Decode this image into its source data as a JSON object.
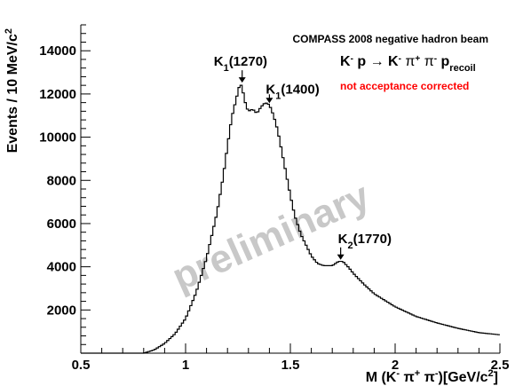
{
  "chart_data": {
    "type": "line",
    "subtype": "histogram-step",
    "title": "COMPASS 2008 negative hadron beam",
    "reaction": {
      "initial": "K",
      "initial_charge": "-",
      "target": " p",
      "arrow": "→",
      "final_1": "K",
      "final_1_charge": "-",
      "final_2": "π",
      "final_2_charge": "+",
      "final_3": "π",
      "final_3_charge": "-",
      "recoil": "p",
      "recoil_sub": "recoil"
    },
    "note": "not acceptance corrected",
    "note_color": "#ff0000",
    "watermark": "preliminary",
    "ylabel": {
      "text": "Events / 10 MeV/c",
      "superscript": "2"
    },
    "xlabel": {
      "prefix": "M (K",
      "k_charge": "-",
      "pi1": " π",
      "pi1_charge": "+",
      "pi2": " π",
      "pi2_charge": "-",
      "suffix": ")[GeV/c",
      "unit_sup": "2",
      "close": "]"
    },
    "xlim": [
      0.5,
      2.5
    ],
    "ylim": [
      0,
      15200
    ],
    "x_ticks": [
      {
        "value": 0.5,
        "label": "0.5"
      },
      {
        "value": 1.0,
        "label": "1"
      },
      {
        "value": 1.5,
        "label": "1.5"
      },
      {
        "value": 2.0,
        "label": "2"
      },
      {
        "value": 2.5,
        "label": "2.5"
      }
    ],
    "y_ticks": [
      {
        "value": 2000,
        "label": "2000"
      },
      {
        "value": 4000,
        "label": "4000"
      },
      {
        "value": 6000,
        "label": "6000"
      },
      {
        "value": 8000,
        "label": "8000"
      },
      {
        "value": 10000,
        "label": "10000"
      },
      {
        "value": 12000,
        "label": "12000"
      },
      {
        "value": 14000,
        "label": "14000"
      }
    ],
    "bin_width": 0.01,
    "series": [
      {
        "color": "#000000",
        "x": [
          0.5,
          0.8,
          0.85,
          0.9,
          0.95,
          1.0,
          1.05,
          1.1,
          1.15,
          1.18,
          1.2,
          1.22,
          1.24,
          1.25,
          1.26,
          1.27,
          1.28,
          1.29,
          1.3,
          1.32,
          1.34,
          1.36,
          1.38,
          1.4,
          1.42,
          1.44,
          1.46,
          1.48,
          1.5,
          1.52,
          1.55,
          1.58,
          1.6,
          1.63,
          1.66,
          1.7,
          1.73,
          1.75,
          1.78,
          1.8,
          1.85,
          1.9,
          2.0,
          2.1,
          2.2,
          2.3,
          2.4,
          2.5
        ],
        "y": [
          0,
          0,
          150,
          450,
          900,
          1600,
          2800,
          4400,
          6500,
          8200,
          9600,
          10900,
          11700,
          12100,
          12500,
          12300,
          11800,
          11400,
          11200,
          11300,
          11100,
          11400,
          11600,
          11500,
          11000,
          10300,
          9300,
          8300,
          7300,
          6400,
          5500,
          4900,
          4500,
          4150,
          4050,
          4050,
          4250,
          4250,
          3950,
          3700,
          3200,
          2750,
          2150,
          1700,
          1400,
          1150,
          950,
          850
        ]
      }
    ],
    "annotations": [
      {
        "main": "K",
        "sub": "1",
        "rest": "(1270)",
        "x": 1.27,
        "y": 12400
      },
      {
        "main": "K",
        "sub": "1",
        "rest": "(1400)",
        "x": 1.4,
        "y": 11450
      },
      {
        "main": "K",
        "sub": "2",
        "rest": "(1770)",
        "x": 1.74,
        "y": 4200
      }
    ],
    "grid": false,
    "colors": {
      "line": "#000000",
      "background": "#ffffff"
    }
  }
}
